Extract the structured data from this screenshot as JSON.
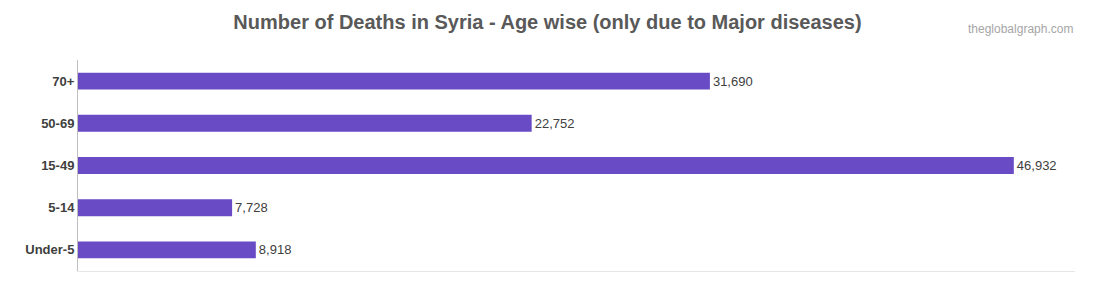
{
  "chart_data": {
    "type": "bar",
    "orientation": "horizontal",
    "title": "Number of Deaths in Syria - Age wise (only due to Major diseases)",
    "annotations": [
      "theglobalgraph.com"
    ],
    "categories": [
      "Under-5",
      "5-14",
      "15-49",
      "50-69",
      "70+"
    ],
    "values": [
      8918,
      7728,
      46932,
      22752,
      31690
    ],
    "value_labels": [
      "8,918",
      "7,728",
      "46,932",
      "22,752",
      "31,690"
    ],
    "color": "#6a4bc6",
    "xlim": [
      0,
      50000
    ],
    "grid": false,
    "data_labels": true,
    "tick_labels": "y"
  }
}
